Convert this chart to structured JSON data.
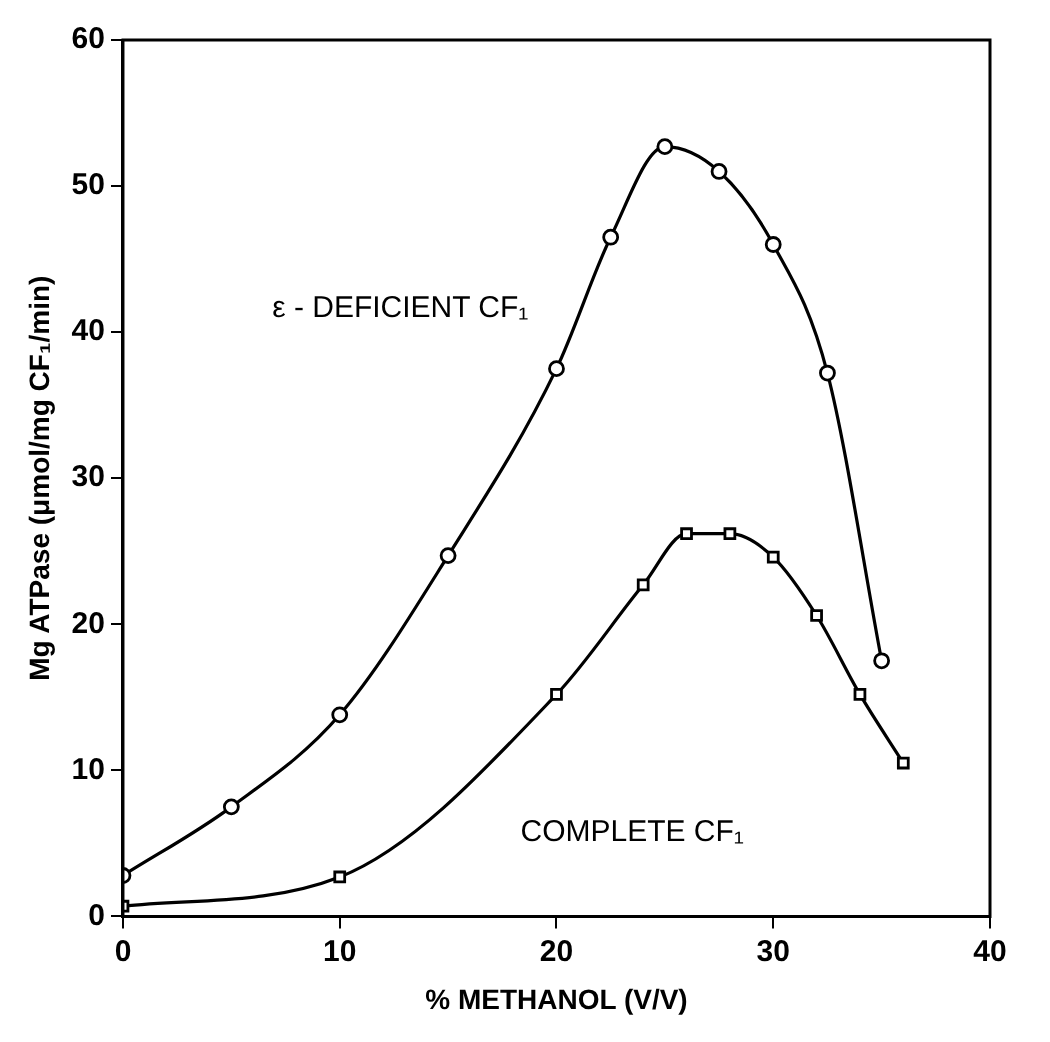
{
  "chart_data": {
    "type": "line",
    "xlabel": "% METHANOL (V/V)",
    "ylabel": "Mg ATPase (μmol/mg CF₁/min)",
    "xlim": [
      0,
      40
    ],
    "xticks": [
      0,
      10,
      20,
      30,
      40
    ],
    "ylim": [
      0,
      60
    ],
    "yticks": [
      0,
      10,
      20,
      30,
      40,
      50,
      60
    ],
    "grid": false,
    "legend": false,
    "series": [
      {
        "name": "ε - DEFICIENT CF₁",
        "color": "#000000",
        "marker": "circle",
        "x": [
          0,
          5,
          10,
          15,
          20,
          22.5,
          25,
          27.5,
          30,
          32.5,
          35
        ],
        "values": [
          2.8,
          7.5,
          13.8,
          24.7,
          37.5,
          46.5,
          52.7,
          51,
          46,
          37.2,
          17.5
        ]
      },
      {
        "name": "COMPLETE CF₁",
        "color": "#000000",
        "marker": "square",
        "x": [
          0,
          10,
          20,
          24,
          26,
          28,
          30,
          32,
          34,
          36
        ],
        "values": [
          0.7,
          2.7,
          15.2,
          22.7,
          26.2,
          26.2,
          24.6,
          20.6,
          15.2,
          10.5
        ]
      }
    ]
  }
}
